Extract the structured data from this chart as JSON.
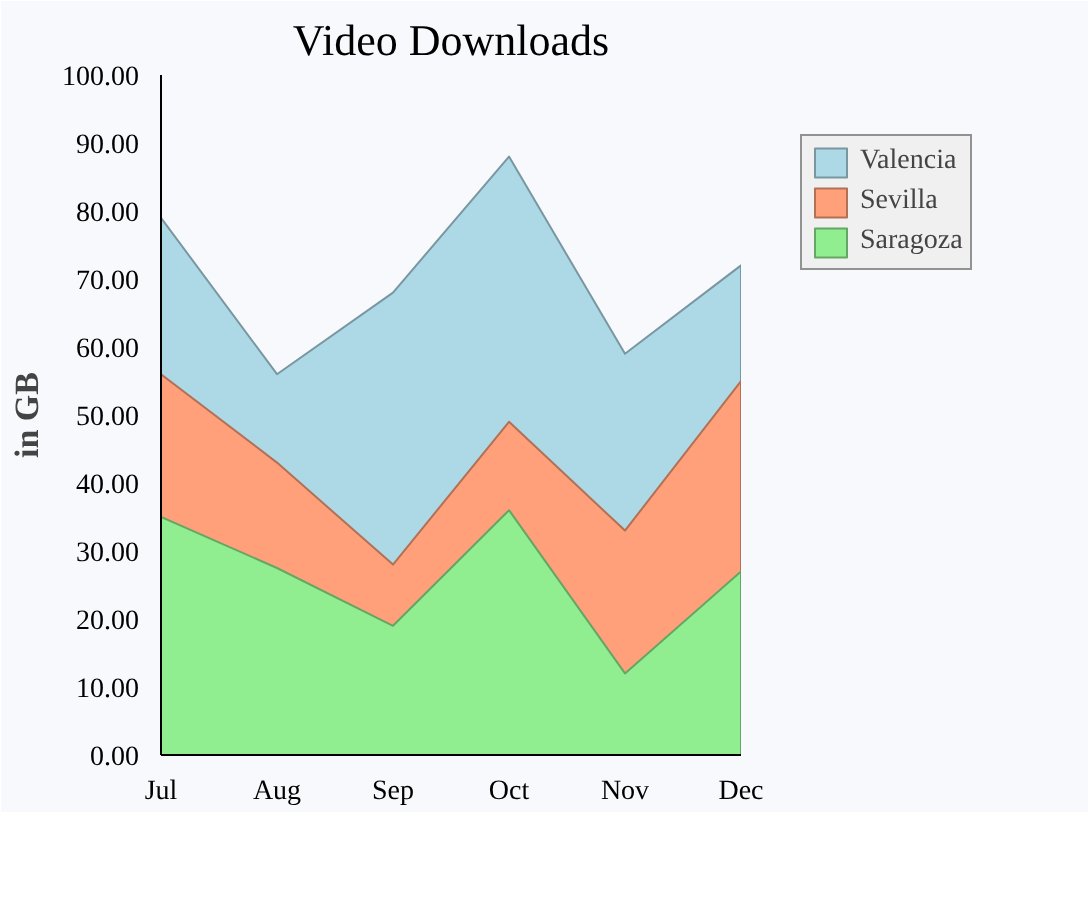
{
  "chart_data": {
    "type": "area",
    "title": "Video Downloads",
    "ylabel": "in GB",
    "categories": [
      "Jul",
      "Aug",
      "Sep",
      "Oct",
      "Nov",
      "Dec"
    ],
    "series": [
      {
        "name": "Valencia",
        "color": "#add8e6",
        "values": [
          79,
          56,
          68,
          88,
          59,
          72
        ]
      },
      {
        "name": "Sevilla",
        "color": "#ffa07a",
        "values": [
          56,
          43,
          28,
          49,
          33,
          55
        ]
      },
      {
        "name": "Saragoza",
        "color": "#90ee90",
        "values": [
          35,
          27.5,
          19,
          36,
          12,
          27
        ]
      }
    ],
    "ylim": [
      0,
      100
    ],
    "yticks": [
      {
        "value": 0,
        "label": "0.00"
      },
      {
        "value": 10,
        "label": "10.00"
      },
      {
        "value": 20,
        "label": "20.00"
      },
      {
        "value": 30,
        "label": "30.00"
      },
      {
        "value": 40,
        "label": "40.00"
      },
      {
        "value": 50,
        "label": "50.00"
      },
      {
        "value": 60,
        "label": "60.00"
      },
      {
        "value": 70,
        "label": "70.00"
      },
      {
        "value": 80,
        "label": "80.00"
      },
      {
        "value": 90,
        "label": "90.00"
      },
      {
        "value": 100,
        "label": "100.00"
      }
    ],
    "grid": false,
    "legend": "top right"
  }
}
